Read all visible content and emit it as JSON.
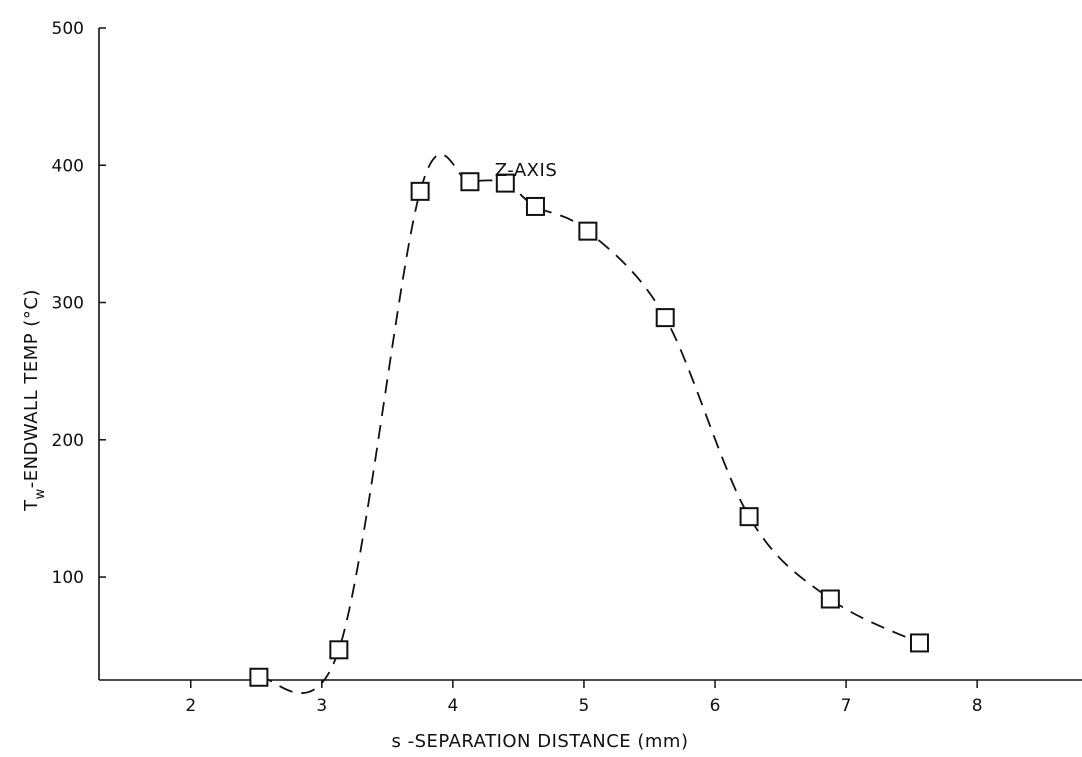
{
  "chart_data": {
    "type": "scatter",
    "title": "",
    "xlabel": "s -SEPARATION DISTANCE (mm)",
    "ylabel_main": "T",
    "ylabel_sub": "w",
    "ylabel_rest": "-ENDWALL TEMP (°C)",
    "annotation": "Z-AXIS",
    "xlim": [
      1.3,
      8.8
    ],
    "ylim": [
      25,
      500
    ],
    "xticks": [
      2,
      3,
      4,
      5,
      6,
      7,
      8
    ],
    "yticks": [
      100,
      200,
      300,
      400,
      500
    ],
    "grid": false,
    "series": [
      {
        "marker": "open-square",
        "line": "dashed",
        "x": [
          2.52,
          3.13,
          3.75,
          4.13,
          4.4,
          4.63,
          5.03,
          5.62,
          6.26,
          6.88,
          7.56
        ],
        "y": [
          27,
          47,
          381,
          388,
          387,
          370,
          352,
          289,
          144,
          84,
          52
        ]
      }
    ]
  }
}
